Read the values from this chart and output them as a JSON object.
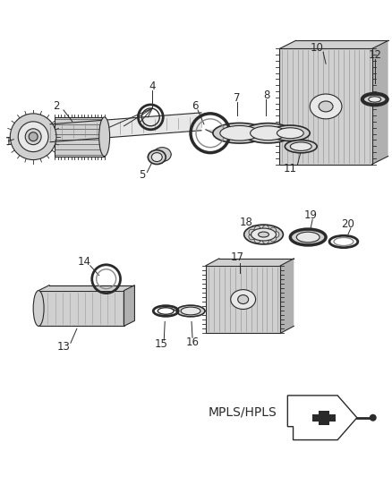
{
  "bg_color": "#ffffff",
  "fig_width": 4.38,
  "fig_height": 5.33,
  "dpi": 100,
  "label_fontsize": 8.5,
  "line_color": "#2a2a2a",
  "fill_light": "#e8e8e8",
  "fill_mid": "#d0d0d0",
  "fill_dark": "#b0b0b0",
  "mpls_text": "MPLS/HPLS",
  "mpls_fontsize": 10
}
